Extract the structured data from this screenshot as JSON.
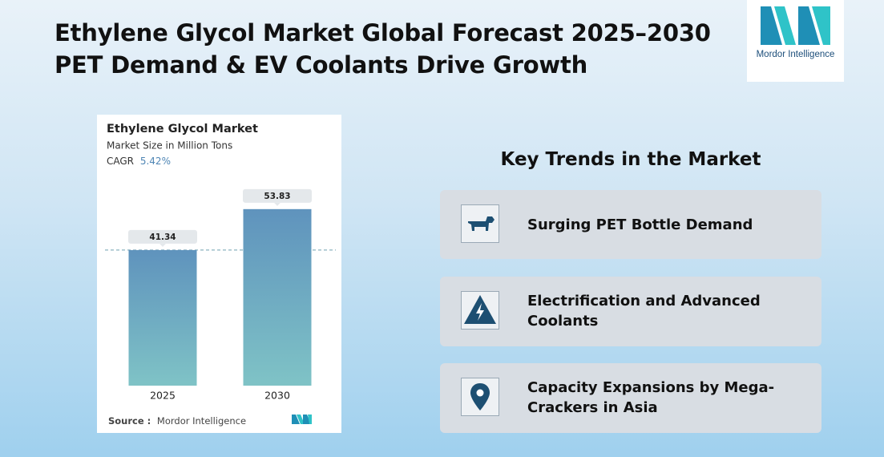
{
  "header": {
    "title_lines": [
      "Ethylene Glycol Market Global Forecast 2025–2030",
      "PET Demand & EV Coolants Drive Growth"
    ],
    "logo_text": "Mordor Intelligence"
  },
  "chart_data": {
    "type": "bar",
    "title": "Ethylene Glycol Market",
    "subtitle": "Market Size in Million Tons",
    "cagr_label": "CAGR",
    "cagr_value": "5.42%",
    "categories": [
      "2025",
      "2030"
    ],
    "values": [
      41.34,
      53.83
    ],
    "source_label": "Source :",
    "source": "Mordor Intelligence"
  },
  "trends": {
    "title": "Key Trends in the Market",
    "items": [
      {
        "lines": [
          "Surging PET Bottle Demand"
        ]
      },
      {
        "lines": [
          "Electrification and Advanced",
          "Coolants"
        ]
      },
      {
        "lines": [
          "Capacity Expansions by Mega-",
          "Crackers in Asia"
        ]
      }
    ]
  }
}
